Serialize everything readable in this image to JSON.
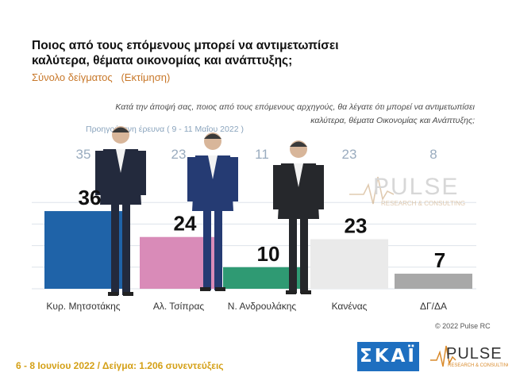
{
  "header": {
    "title": "Ποιος από τους επόμενους μπορεί να αντιμετωπίσει καλύτερα, θέματα οικονομίας και ανάπτυξης;",
    "subtitle": "Σύνολο δείγματος   (Εκτίμηση)",
    "question": "Κατά την άποψή σας, ποιος  από τους επόμενους αρχηγούς, θα λέγατε ότι μπορεί να αντιμετωπίσει καλύτερα, θέματα Οικονομίας και Ανάπτυξης;",
    "previous_label": "Προηγούμενη έρευνα  ( 9 - 11 Μαΐου 2022 )"
  },
  "chart_data": {
    "type": "bar",
    "categories": [
      "Κυρ. Μητσοτάκης",
      "Αλ. Τσίπρας",
      "Ν. Ανδρουλάκης",
      "Κανένας",
      "ΔΓ/ΔΑ"
    ],
    "values": [
      36,
      24,
      10,
      23,
      7
    ],
    "previous_values": [
      35,
      23,
      11,
      23,
      8
    ],
    "bar_colors": [
      "#1f63a8",
      "#d98bb8",
      "#2f9a73",
      "#eaeaea",
      "#a8a8a8"
    ],
    "ylim": [
      0,
      40
    ],
    "grid": true
  },
  "footer": {
    "fieldwork": "6 - 8 Ιουνίου  2022  /  Δείγμα:  1.206 συνεντεύξεις",
    "copyright": "© 2022 Pulse RC",
    "skai_logo": "ΣΚΑΪ",
    "pulse_logo": "PULSE",
    "pulse_tagline": "RESEARCH & CONSULTING"
  }
}
